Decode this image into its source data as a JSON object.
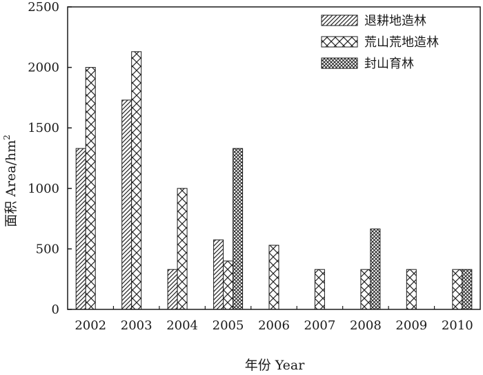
{
  "chart_data": {
    "type": "bar",
    "categories": [
      "2002",
      "2003",
      "2004",
      "2005",
      "2006",
      "2007",
      "2008",
      "2009",
      "2010"
    ],
    "series": [
      {
        "name": "退耕地造林",
        "pattern": "diagonal",
        "values": [
          1330,
          1730,
          330,
          575,
          0,
          0,
          0,
          0,
          0
        ]
      },
      {
        "name": "荒山荒地造林",
        "pattern": "cross",
        "values": [
          2000,
          2130,
          1000,
          400,
          530,
          330,
          330,
          330,
          330
        ]
      },
      {
        "name": "封山育林",
        "pattern": "dense",
        "values": [
          0,
          0,
          0,
          1330,
          0,
          0,
          665,
          0,
          330
        ]
      }
    ],
    "xlabel": "年份 Year",
    "ylabel": "面积 Area/hm",
    "ylabel_superscript": "2",
    "ylim": [
      0,
      2500
    ],
    "yticks": [
      "0",
      "500",
      "1000",
      "1500",
      "2000",
      "2500"
    ],
    "grid": false,
    "legend_position": "top-right"
  }
}
